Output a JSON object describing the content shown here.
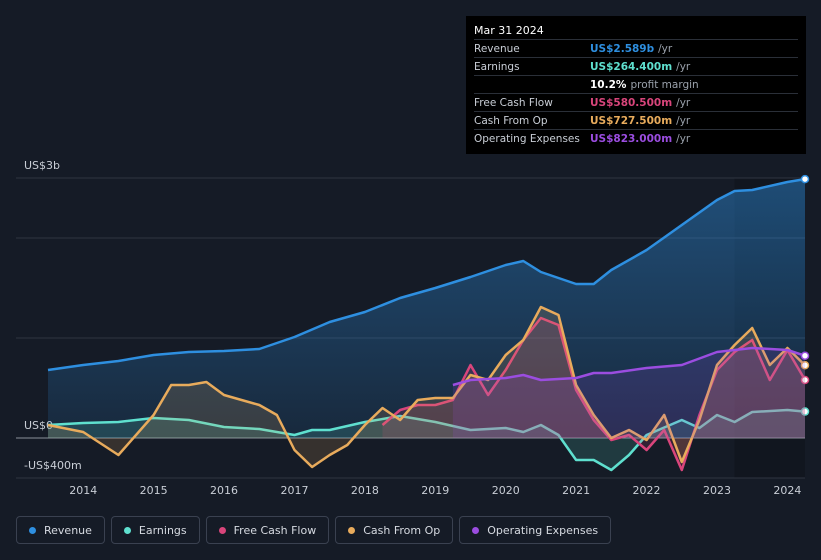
{
  "chart_data": {
    "type": "line",
    "xlim": [
      2013.5,
      2024.25
    ],
    "xticks": [
      2014,
      2015,
      2016,
      2017,
      2018,
      2019,
      2020,
      2021,
      2022,
      2023,
      2024
    ],
    "ylim": [
      -400,
      2600
    ],
    "yticks": [
      {
        "value": -400,
        "label": "-US$400m"
      },
      {
        "value": 0,
        "label": "US$0"
      },
      {
        "value": 1000,
        "label": null
      },
      {
        "value": 2000,
        "label": null
      },
      {
        "value": 2600,
        "label": "US$3b"
      }
    ],
    "grid": true,
    "series": [
      {
        "name": "Revenue",
        "color": "#2e8fe0",
        "x": [
          2013.5,
          2014,
          2014.5,
          2015,
          2015.5,
          2016,
          2016.5,
          2017,
          2017.5,
          2018,
          2018.5,
          2019,
          2019.5,
          2020,
          2020.25,
          2020.5,
          2021,
          2021.25,
          2021.5,
          2022,
          2022.5,
          2023,
          2023.25,
          2023.5,
          2024,
          2024.25
        ],
        "values": [
          680,
          730,
          770,
          830,
          860,
          870,
          890,
          1010,
          1160,
          1260,
          1400,
          1500,
          1610,
          1730,
          1770,
          1660,
          1540,
          1540,
          1680,
          1880,
          2130,
          2380,
          2470,
          2480,
          2560,
          2589
        ]
      },
      {
        "name": "Earnings",
        "color": "#5fe0cf",
        "x": [
          2013.5,
          2014,
          2014.5,
          2015,
          2015.5,
          2016,
          2016.5,
          2017,
          2017.25,
          2017.5,
          2018,
          2018.5,
          2019,
          2019.5,
          2020,
          2020.25,
          2020.5,
          2020.75,
          2021,
          2021.25,
          2021.5,
          2021.75,
          2022,
          2022.5,
          2022.75,
          2023,
          2023.25,
          2023.5,
          2024,
          2024.25
        ],
        "values": [
          130,
          150,
          160,
          200,
          180,
          110,
          90,
          30,
          80,
          80,
          160,
          220,
          160,
          80,
          100,
          60,
          130,
          30,
          -220,
          -220,
          -320,
          -170,
          30,
          180,
          100,
          230,
          160,
          260,
          280,
          264.4
        ]
      },
      {
        "name": "Free Cash Flow",
        "color": "#d9457b",
        "x": [
          2018.25,
          2018.5,
          2018.75,
          2019,
          2019.25,
          2019.5,
          2019.75,
          2020,
          2020.25,
          2020.5,
          2020.75,
          2021,
          2021.25,
          2021.5,
          2021.75,
          2022,
          2022.25,
          2022.5,
          2022.75,
          2023,
          2023.25,
          2023.5,
          2023.75,
          2024,
          2024.25
        ],
        "values": [
          130,
          280,
          330,
          330,
          380,
          730,
          430,
          680,
          980,
          1200,
          1130,
          480,
          180,
          -20,
          30,
          -120,
          80,
          -320,
          230,
          680,
          860,
          980,
          580,
          880,
          580.5
        ]
      },
      {
        "name": "Cash From Op",
        "color": "#e8ab5c",
        "x": [
          2013.5,
          2014,
          2014.5,
          2015,
          2015.25,
          2015.5,
          2015.75,
          2016,
          2016.5,
          2016.75,
          2017,
          2017.25,
          2017.5,
          2017.75,
          2018,
          2018.25,
          2018.5,
          2018.75,
          2019,
          2019.25,
          2019.5,
          2019.75,
          2020,
          2020.25,
          2020.5,
          2020.75,
          2021,
          2021.25,
          2021.5,
          2021.75,
          2022,
          2022.25,
          2022.5,
          2022.75,
          2023,
          2023.25,
          2023.5,
          2023.75,
          2024,
          2024.25
        ],
        "values": [
          130,
          60,
          -170,
          230,
          530,
          530,
          560,
          430,
          330,
          230,
          -120,
          -290,
          -170,
          -70,
          130,
          300,
          180,
          380,
          400,
          400,
          630,
          580,
          830,
          980,
          1310,
          1230,
          530,
          230,
          0,
          80,
          -20,
          230,
          -240,
          180,
          730,
          930,
          1100,
          730,
          900,
          727.5
        ]
      },
      {
        "name": "Operating Expenses",
        "color": "#9b4de0",
        "x": [
          2019.25,
          2019.5,
          2020,
          2020.25,
          2020.5,
          2021,
          2021.25,
          2021.5,
          2022,
          2022.5,
          2023,
          2023.5,
          2024,
          2024.25
        ],
        "values": [
          530,
          580,
          600,
          630,
          580,
          600,
          650,
          650,
          700,
          730,
          860,
          900,
          880,
          823
        ]
      }
    ],
    "tooltip": {
      "date": "Mar 31 2024",
      "rows": [
        {
          "label": "Revenue",
          "value": "US$2.589b",
          "unit": "/yr"
        },
        {
          "label": "Earnings",
          "value": "US$264.400m",
          "unit": "/yr"
        },
        {
          "label": null,
          "value": "10.2%",
          "unit": "profit margin"
        },
        {
          "label": "Free Cash Flow",
          "value": "US$580.500m",
          "unit": "/yr"
        },
        {
          "label": "Cash From Op",
          "value": "US$727.500m",
          "unit": "/yr"
        },
        {
          "label": "Operating Expenses",
          "value": "US$823.000m",
          "unit": "/yr"
        }
      ]
    }
  }
}
